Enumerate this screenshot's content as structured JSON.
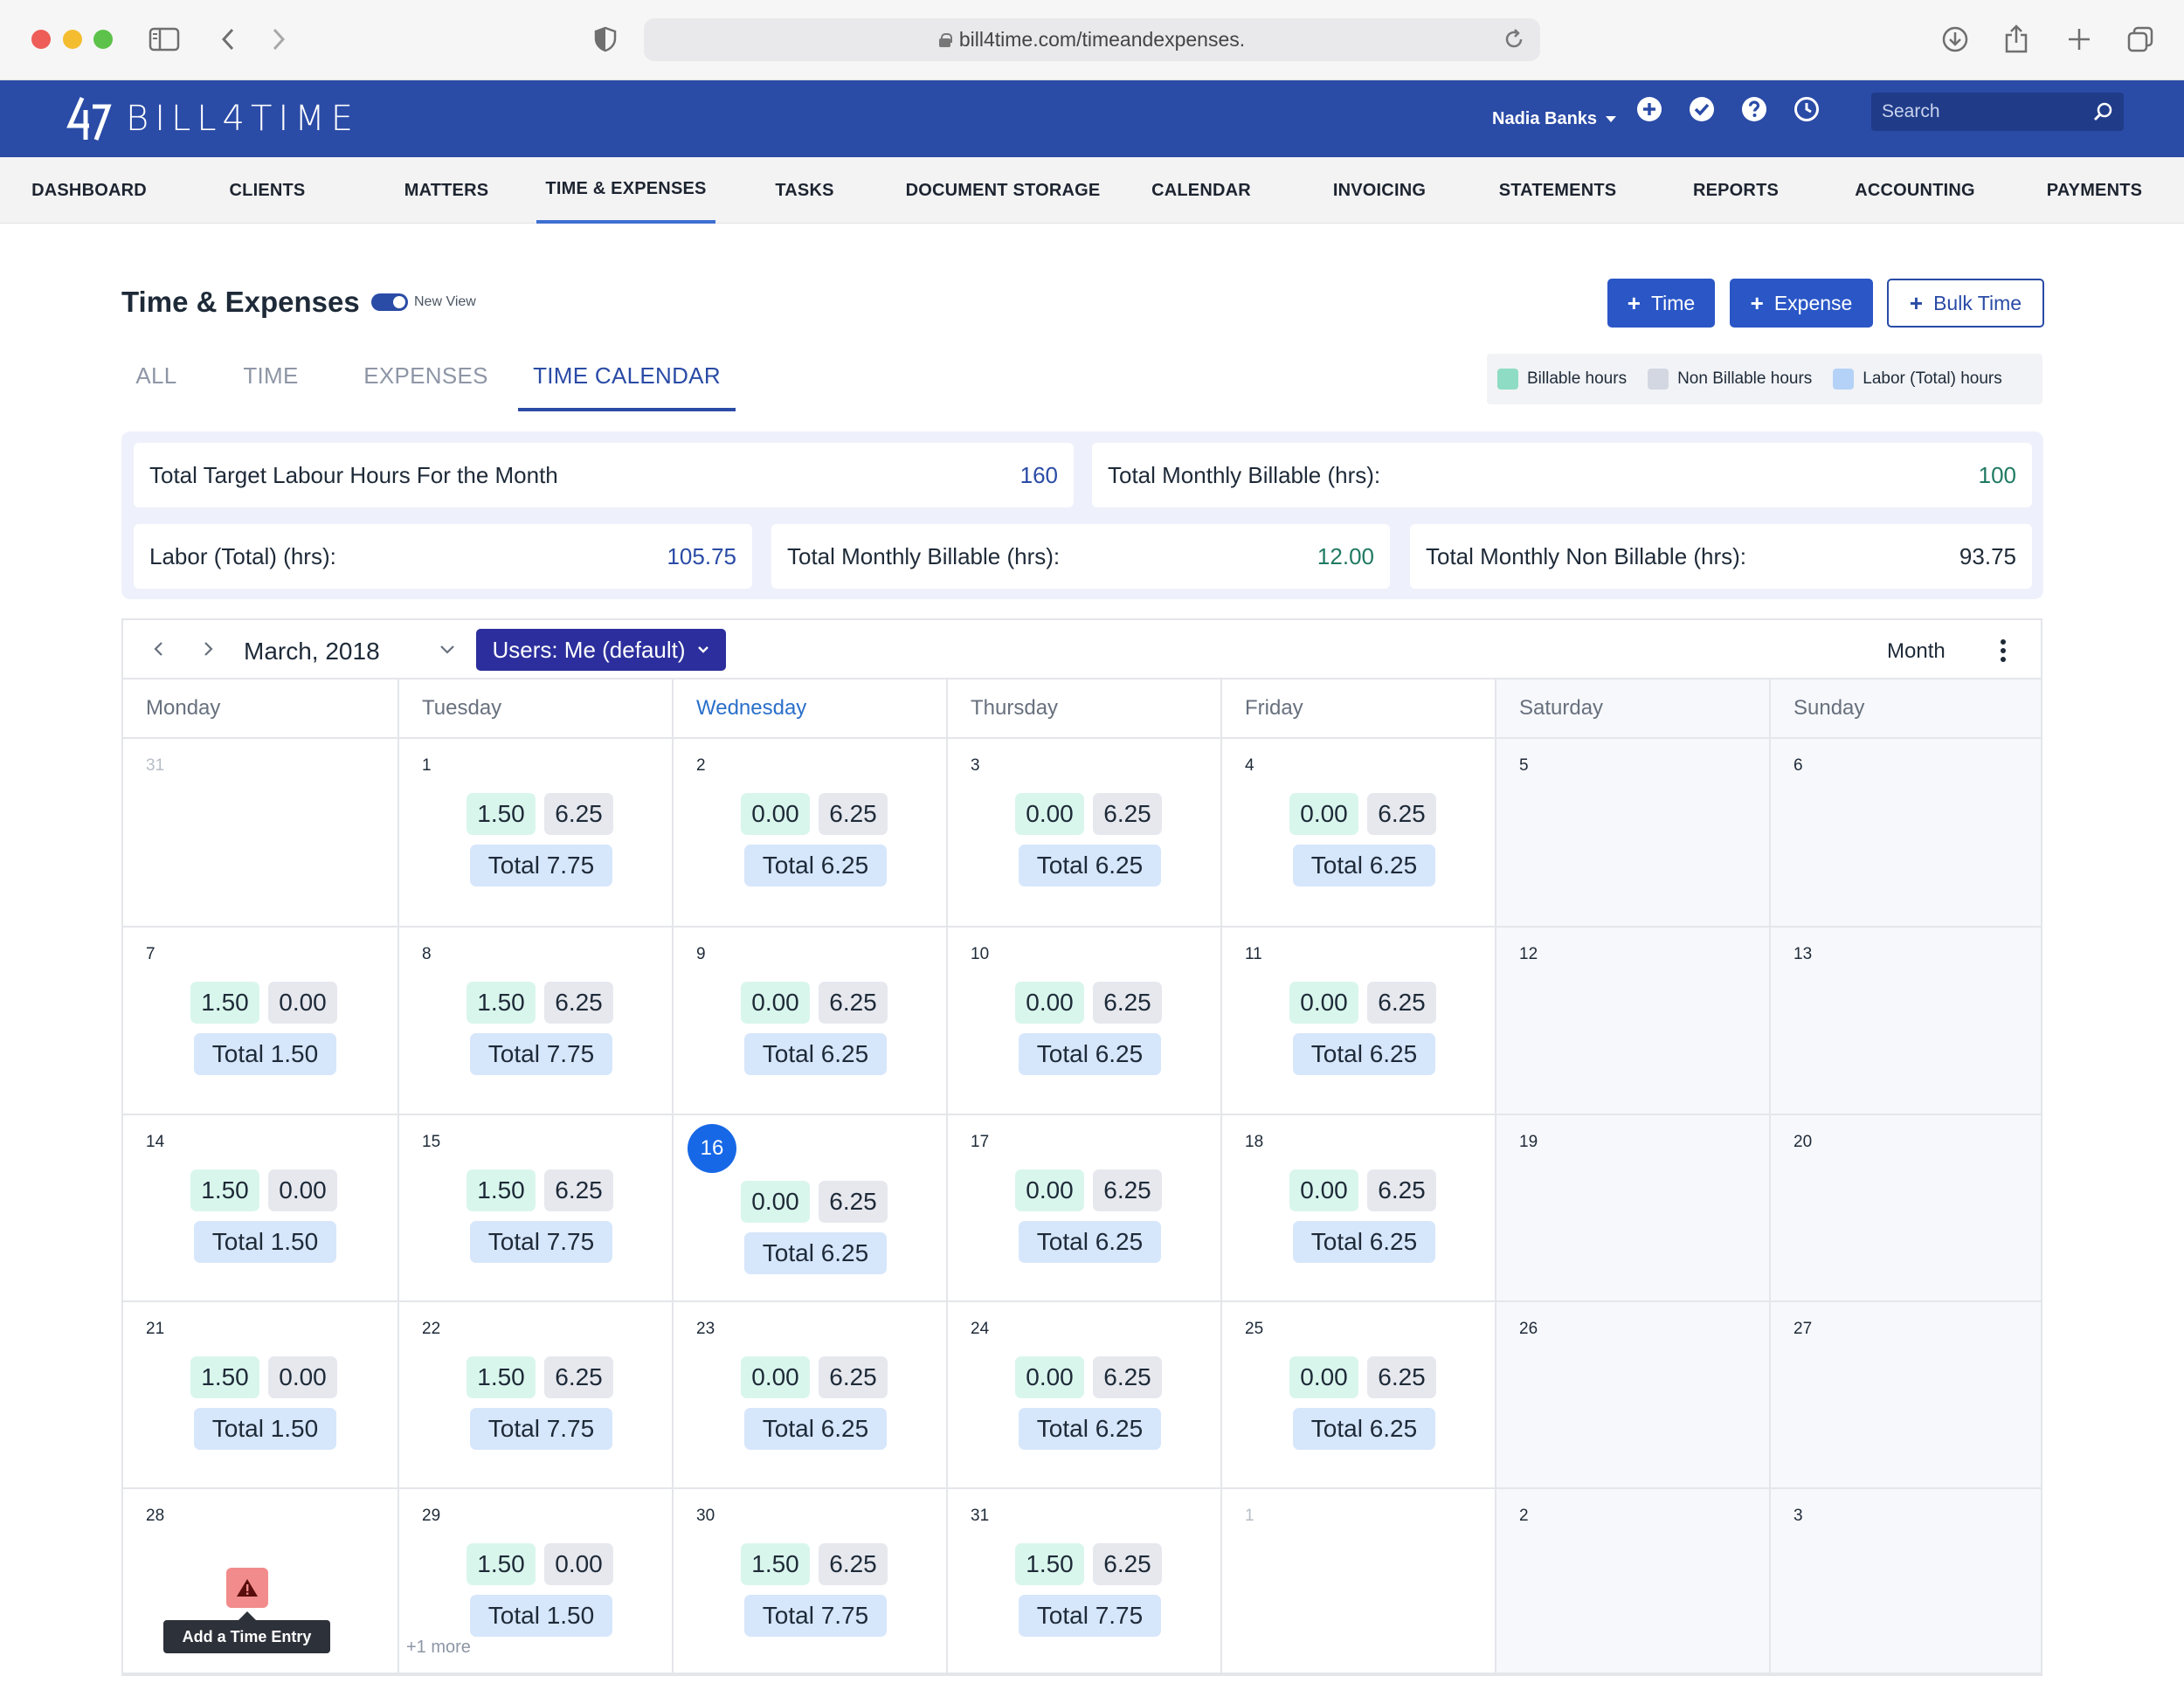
{
  "browser": {
    "url": "bill4time.com/timeandexpenses."
  },
  "app": {
    "logo_text": "BILL4TIME",
    "user_name": "Nadia Banks",
    "search_placeholder": "Search",
    "brand_color": "#2a4ba6"
  },
  "nav": [
    {
      "label": "DASHBOARD"
    },
    {
      "label": "CLIENTS"
    },
    {
      "label": "MATTERS"
    },
    {
      "label": "TIME & EXPENSES",
      "active": true
    },
    {
      "label": "TASKS"
    },
    {
      "label": "DOCUMENT STORAGE"
    },
    {
      "label": "CALENDAR"
    },
    {
      "label": "INVOICING"
    },
    {
      "label": "STATEMENTS"
    },
    {
      "label": "REPORTS"
    },
    {
      "label": "ACCOUNTING"
    },
    {
      "label": "PAYMENTS"
    }
  ],
  "page": {
    "title": "Time & Expenses",
    "toggle_label": "New View",
    "toggle_on": true,
    "buttons": {
      "time": "Time",
      "expense": "Expense",
      "bulk_time": "Bulk Time"
    }
  },
  "tabs": [
    {
      "label": "ALL"
    },
    {
      "label": "TIME"
    },
    {
      "label": "EXPENSES"
    },
    {
      "label": "TIME CALENDAR",
      "active": true
    }
  ],
  "legend": [
    {
      "label": "Billable hours",
      "color": "#8fdcc4"
    },
    {
      "label": "Non Billable hours",
      "color": "#d3d7e2"
    },
    {
      "label": "Labor (Total) hours",
      "color": "#b4d2f7"
    }
  ],
  "stats": {
    "target_label": "Total Target Labour Hours For the Month",
    "target_value": "160",
    "monthly_billable_label": "Total Monthly Billable (hrs):",
    "monthly_billable_value": "100",
    "labor_total_label": "Labor (Total) (hrs):",
    "labor_total_value": "105.75",
    "monthly_billable_label_2": "Total Monthly Billable (hrs):",
    "monthly_billable_value_2": "12.00",
    "monthly_non_billable_label": "Total Monthly Non Billable (hrs):",
    "monthly_non_billable_value": "93.75"
  },
  "calendar": {
    "month_label": "March, 2018",
    "users_filter": "Users: Me (default)",
    "view_mode": "Month",
    "today_day": "Wednesday",
    "day_headers": [
      "Monday",
      "Tuesday",
      "Wednesday",
      "Thursday",
      "Friday",
      "Saturday",
      "Sunday"
    ],
    "weeks": [
      [
        {
          "day": "31",
          "muted": true
        },
        {
          "day": "1",
          "billable": "1.50",
          "non_billable": "6.25",
          "total": "Total 7.75"
        },
        {
          "day": "2",
          "billable": "0.00",
          "non_billable": "6.25",
          "total": "Total 6.25"
        },
        {
          "day": "3",
          "billable": "0.00",
          "non_billable": "6.25",
          "total": "Total 6.25"
        },
        {
          "day": "4",
          "billable": "0.00",
          "non_billable": "6.25",
          "total": "Total 6.25"
        },
        {
          "day": "5"
        },
        {
          "day": "6"
        }
      ],
      [
        {
          "day": "7",
          "billable": "1.50",
          "non_billable": "0.00",
          "total": "Total 1.50"
        },
        {
          "day": "8",
          "billable": "1.50",
          "non_billable": "6.25",
          "total": "Total 7.75"
        },
        {
          "day": "9",
          "billable": "0.00",
          "non_billable": "6.25",
          "total": "Total 6.25"
        },
        {
          "day": "10",
          "billable": "0.00",
          "non_billable": "6.25",
          "total": "Total 6.25"
        },
        {
          "day": "11",
          "billable": "0.00",
          "non_billable": "6.25",
          "total": "Total 6.25"
        },
        {
          "day": "12"
        },
        {
          "day": "13"
        }
      ],
      [
        {
          "day": "14",
          "billable": "1.50",
          "non_billable": "0.00",
          "total": "Total 1.50"
        },
        {
          "day": "15",
          "billable": "1.50",
          "non_billable": "6.25",
          "total": "Total 7.75"
        },
        {
          "day": "16",
          "today": true,
          "billable": "0.00",
          "non_billable": "6.25",
          "total": "Total 6.25"
        },
        {
          "day": "17",
          "billable": "0.00",
          "non_billable": "6.25",
          "total": "Total 6.25"
        },
        {
          "day": "18",
          "billable": "0.00",
          "non_billable": "6.25",
          "total": "Total 6.25"
        },
        {
          "day": "19"
        },
        {
          "day": "20"
        }
      ],
      [
        {
          "day": "21",
          "billable": "1.50",
          "non_billable": "0.00",
          "total": "Total 1.50"
        },
        {
          "day": "22",
          "billable": "1.50",
          "non_billable": "6.25",
          "total": "Total 7.75"
        },
        {
          "day": "23",
          "billable": "0.00",
          "non_billable": "6.25",
          "total": "Total 6.25"
        },
        {
          "day": "24",
          "billable": "0.00",
          "non_billable": "6.25",
          "total": "Total 6.25"
        },
        {
          "day": "25",
          "billable": "0.00",
          "non_billable": "6.25",
          "total": "Total 6.25"
        },
        {
          "day": "26"
        },
        {
          "day": "27"
        }
      ],
      [
        {
          "day": "28",
          "warning": true,
          "tooltip": "Add a Time Entry"
        },
        {
          "day": "29",
          "billable": "1.50",
          "non_billable": "0.00",
          "total": "Total 1.50",
          "more": "+1 more"
        },
        {
          "day": "30",
          "billable": "1.50",
          "non_billable": "6.25",
          "total": "Total 7.75"
        },
        {
          "day": "31",
          "billable": "1.50",
          "non_billable": "6.25",
          "total": "Total 7.75"
        },
        {
          "day": "1",
          "muted": true
        },
        {
          "day": "2"
        },
        {
          "day": "3"
        }
      ]
    ]
  }
}
